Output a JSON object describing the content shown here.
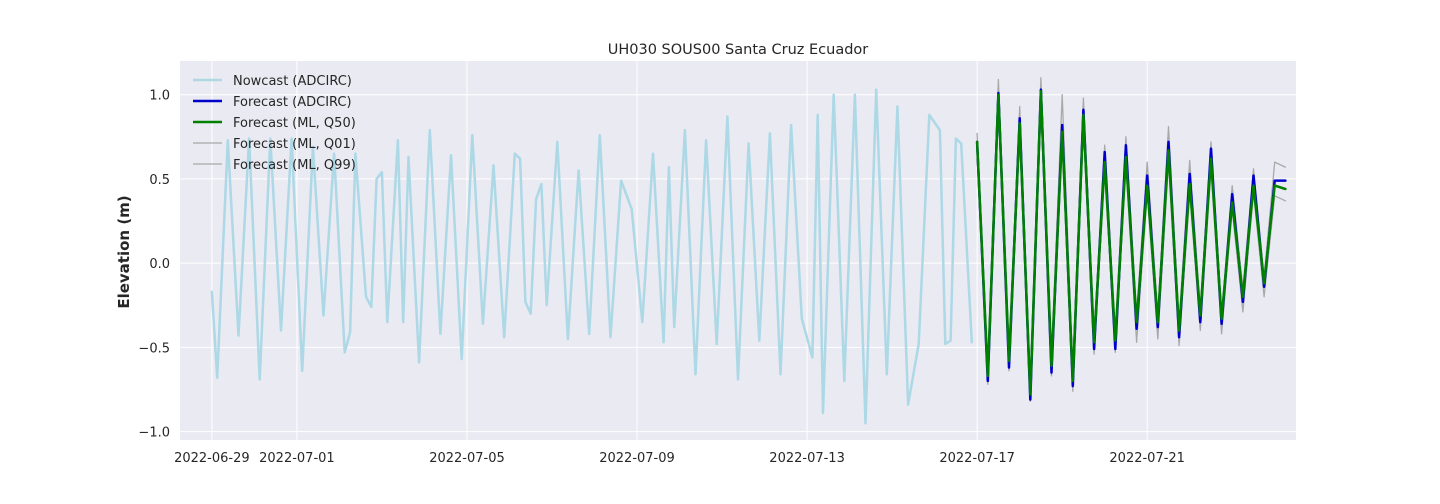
{
  "chart_data": {
    "type": "line",
    "title": "UH030 SOUS00 Santa Cruz Ecuador",
    "xlabel": "",
    "ylabel": "Elevation (m)",
    "ylim": [
      -1.05,
      1.2
    ],
    "xlim": [
      "2022-06-28T06:00",
      "2022-07-24T12:00"
    ],
    "grid": true,
    "background": "#eaeaf2",
    "legend_position": "upper-left",
    "x_ticks": [
      "2022-06-29",
      "2022-07-01",
      "2022-07-05",
      "2022-07-09",
      "2022-07-13",
      "2022-07-17",
      "2022-07-21"
    ],
    "y_ticks": [
      -1.0,
      -0.5,
      0.0,
      0.5,
      1.0
    ],
    "y_tick_labels": [
      "−1.0",
      "−0.5",
      "0.0",
      "0.5",
      "1.0"
    ],
    "series": [
      {
        "name": "Nowcast (ADCIRC)",
        "color": "#add8e6",
        "width": 2.5,
        "x": [
          "2022-06-29T00:00",
          "2022-06-29T03:00",
          "2022-06-29T09:00",
          "2022-06-29T15:00",
          "2022-06-29T21:00",
          "2022-06-30T03:00",
          "2022-06-30T09:00",
          "2022-06-30T15:00",
          "2022-06-30T21:00",
          "2022-07-01T03:00",
          "2022-07-01T09:00",
          "2022-07-01T15:00",
          "2022-07-01T21:00",
          "2022-07-02T03:00",
          "2022-07-02T06:00",
          "2022-07-02T09:00",
          "2022-07-02T15:00",
          "2022-07-02T18:00",
          "2022-07-02T21:00",
          "2022-07-03T00:00",
          "2022-07-03T03:00",
          "2022-07-03T09:00",
          "2022-07-03T12:00",
          "2022-07-03T15:00",
          "2022-07-03T21:00",
          "2022-07-04T03:00",
          "2022-07-04T09:00",
          "2022-07-04T15:00",
          "2022-07-04T21:00",
          "2022-07-05T03:00",
          "2022-07-05T09:00",
          "2022-07-05T15:00",
          "2022-07-05T21:00",
          "2022-07-06T03:00",
          "2022-07-06T06:00",
          "2022-07-06T09:00",
          "2022-07-06T12:00",
          "2022-07-06T15:00",
          "2022-07-06T18:00",
          "2022-07-06T21:00",
          "2022-07-07T03:00",
          "2022-07-07T09:00",
          "2022-07-07T15:00",
          "2022-07-07T21:00",
          "2022-07-08T03:00",
          "2022-07-08T09:00",
          "2022-07-08T15:00",
          "2022-07-08T21:00",
          "2022-07-09T03:00",
          "2022-07-09T09:00",
          "2022-07-09T15:00",
          "2022-07-09T18:00",
          "2022-07-09T21:00",
          "2022-07-10T03:00",
          "2022-07-10T09:00",
          "2022-07-10T15:00",
          "2022-07-10T21:00",
          "2022-07-11T03:00",
          "2022-07-11T09:00",
          "2022-07-11T15:00",
          "2022-07-11T21:00",
          "2022-07-12T03:00",
          "2022-07-12T09:00",
          "2022-07-12T15:00",
          "2022-07-12T21:00",
          "2022-07-13T03:00",
          "2022-07-13T06:00",
          "2022-07-13T09:00",
          "2022-07-13T15:00",
          "2022-07-13T21:00",
          "2022-07-14T03:00",
          "2022-07-14T09:00",
          "2022-07-14T15:00",
          "2022-07-14T21:00",
          "2022-07-15T03:00",
          "2022-07-15T09:00",
          "2022-07-15T15:00",
          "2022-07-15T21:00",
          "2022-07-16T03:00",
          "2022-07-16T06:00",
          "2022-07-16T09:00",
          "2022-07-16T12:00",
          "2022-07-16T15:00",
          "2022-07-16T21:00"
        ],
        "values": [
          -0.17,
          -0.68,
          0.73,
          -0.43,
          0.74,
          -0.69,
          0.74,
          -0.4,
          0.74,
          -0.64,
          0.69,
          -0.31,
          0.65,
          -0.53,
          -0.41,
          0.65,
          -0.2,
          -0.26,
          0.5,
          0.54,
          -0.35,
          0.73,
          -0.35,
          0.63,
          -0.59,
          0.79,
          -0.42,
          0.64,
          -0.57,
          0.76,
          -0.36,
          0.58,
          -0.44,
          0.65,
          0.62,
          -0.23,
          -0.3,
          0.38,
          0.47,
          -0.25,
          0.72,
          -0.45,
          0.55,
          -0.42,
          0.76,
          -0.44,
          0.49,
          0.32,
          -0.35,
          0.65,
          -0.47,
          0.57,
          -0.38,
          0.79,
          -0.66,
          0.73,
          -0.48,
          0.87,
          -0.69,
          0.71,
          -0.46,
          0.77,
          -0.66,
          0.82,
          -0.33,
          -0.56,
          0.88,
          -0.89,
          1.0,
          -0.7,
          1.0,
          -0.95,
          1.03,
          -0.66,
          0.93,
          -0.84,
          -0.48,
          0.88,
          0.79,
          -0.48,
          -0.46,
          0.74,
          0.71,
          -0.47
        ]
      },
      {
        "name": "Forecast (ADCIRC)",
        "color": "#0000cd",
        "width": 2.5,
        "x": [
          "2022-07-17T00:00",
          "2022-07-17T06:00",
          "2022-07-17T12:00",
          "2022-07-17T18:00",
          "2022-07-18T00:00",
          "2022-07-18T06:00",
          "2022-07-18T12:00",
          "2022-07-18T18:00",
          "2022-07-19T00:00",
          "2022-07-19T06:00",
          "2022-07-19T12:00",
          "2022-07-19T18:00",
          "2022-07-20T00:00",
          "2022-07-20T06:00",
          "2022-07-20T12:00",
          "2022-07-20T18:00",
          "2022-07-21T00:00",
          "2022-07-21T06:00",
          "2022-07-21T12:00",
          "2022-07-21T18:00",
          "2022-07-22T00:00",
          "2022-07-22T06:00",
          "2022-07-22T12:00",
          "2022-07-22T18:00",
          "2022-07-23T00:00",
          "2022-07-23T06:00",
          "2022-07-23T12:00",
          "2022-07-23T18:00",
          "2022-07-24T00:00",
          "2022-07-24T06:00"
        ],
        "values": [
          0.72,
          -0.7,
          1.01,
          -0.62,
          0.86,
          -0.81,
          1.03,
          -0.65,
          0.82,
          -0.73,
          0.91,
          -0.51,
          0.66,
          -0.51,
          0.7,
          -0.39,
          0.52,
          -0.38,
          0.72,
          -0.44,
          0.53,
          -0.35,
          0.68,
          -0.36,
          0.41,
          -0.23,
          0.52,
          -0.14,
          0.49,
          0.49
        ]
      },
      {
        "name": "Forecast (ML, Q50)",
        "color": "#008000",
        "width": 2.5,
        "x": [
          "2022-07-17T00:00",
          "2022-07-17T06:00",
          "2022-07-17T12:00",
          "2022-07-17T18:00",
          "2022-07-18T00:00",
          "2022-07-18T06:00",
          "2022-07-18T12:00",
          "2022-07-18T18:00",
          "2022-07-19T00:00",
          "2022-07-19T06:00",
          "2022-07-19T12:00",
          "2022-07-19T18:00",
          "2022-07-20T00:00",
          "2022-07-20T06:00",
          "2022-07-20T12:00",
          "2022-07-20T18:00",
          "2022-07-21T00:00",
          "2022-07-21T06:00",
          "2022-07-21T12:00",
          "2022-07-21T18:00",
          "2022-07-22T00:00",
          "2022-07-22T06:00",
          "2022-07-22T12:00",
          "2022-07-22T18:00",
          "2022-07-23T00:00",
          "2022-07-23T06:00",
          "2022-07-23T12:00",
          "2022-07-23T18:00",
          "2022-07-24T00:00",
          "2022-07-24T06:00"
        ],
        "values": [
          0.72,
          -0.67,
          1.0,
          -0.58,
          0.83,
          -0.78,
          1.02,
          -0.61,
          0.78,
          -0.7,
          0.88,
          -0.47,
          0.6,
          -0.46,
          0.63,
          -0.35,
          0.46,
          -0.35,
          0.67,
          -0.4,
          0.47,
          -0.31,
          0.62,
          -0.33,
          0.36,
          -0.2,
          0.46,
          -0.12,
          0.46,
          0.44
        ]
      },
      {
        "name": "Forecast (ML, Q01)",
        "color": "#a9a9a9",
        "width": 1.3,
        "x": [
          "2022-07-17T00:00",
          "2022-07-17T06:00",
          "2022-07-17T12:00",
          "2022-07-17T18:00",
          "2022-07-18T00:00",
          "2022-07-18T06:00",
          "2022-07-18T12:00",
          "2022-07-18T18:00",
          "2022-07-19T00:00",
          "2022-07-19T06:00",
          "2022-07-19T12:00",
          "2022-07-19T18:00",
          "2022-07-20T00:00",
          "2022-07-20T06:00",
          "2022-07-20T12:00",
          "2022-07-20T18:00",
          "2022-07-21T00:00",
          "2022-07-21T06:00",
          "2022-07-21T12:00",
          "2022-07-21T18:00",
          "2022-07-22T00:00",
          "2022-07-22T06:00",
          "2022-07-22T12:00",
          "2022-07-22T18:00",
          "2022-07-23T00:00",
          "2022-07-23T06:00",
          "2022-07-23T12:00",
          "2022-07-23T18:00",
          "2022-07-24T00:00",
          "2022-07-24T06:00"
        ],
        "values": [
          0.64,
          -0.72,
          0.93,
          -0.64,
          0.76,
          -0.82,
          0.95,
          -0.67,
          0.72,
          -0.76,
          0.82,
          -0.54,
          0.55,
          -0.53,
          0.58,
          -0.47,
          0.42,
          -0.45,
          0.6,
          -0.49,
          0.42,
          -0.4,
          0.56,
          -0.42,
          0.32,
          -0.29,
          0.42,
          -0.2,
          0.4,
          0.37
        ]
      },
      {
        "name": "Forecast (ML, Q99)",
        "color": "#a9a9a9",
        "width": 1.3,
        "x": [
          "2022-07-17T00:00",
          "2022-07-17T06:00",
          "2022-07-17T12:00",
          "2022-07-17T18:00",
          "2022-07-18T00:00",
          "2022-07-18T06:00",
          "2022-07-18T12:00",
          "2022-07-18T18:00",
          "2022-07-19T00:00",
          "2022-07-19T06:00",
          "2022-07-19T12:00",
          "2022-07-19T18:00",
          "2022-07-20T00:00",
          "2022-07-20T06:00",
          "2022-07-20T12:00",
          "2022-07-20T18:00",
          "2022-07-21T00:00",
          "2022-07-21T06:00",
          "2022-07-21T12:00",
          "2022-07-21T18:00",
          "2022-07-22T00:00",
          "2022-07-22T06:00",
          "2022-07-22T12:00",
          "2022-07-22T18:00",
          "2022-07-23T00:00",
          "2022-07-23T06:00",
          "2022-07-23T12:00",
          "2022-07-23T18:00",
          "2022-07-24T00:00",
          "2022-07-24T06:00"
        ],
        "values": [
          0.77,
          -0.6,
          1.09,
          -0.52,
          0.93,
          -0.72,
          1.1,
          -0.56,
          1.0,
          -0.63,
          0.98,
          -0.42,
          0.7,
          -0.4,
          0.75,
          -0.3,
          0.6,
          -0.3,
          0.81,
          -0.35,
          0.61,
          -0.27,
          0.72,
          -0.3,
          0.46,
          -0.15,
          0.56,
          -0.08,
          0.6,
          0.57
        ]
      }
    ]
  }
}
